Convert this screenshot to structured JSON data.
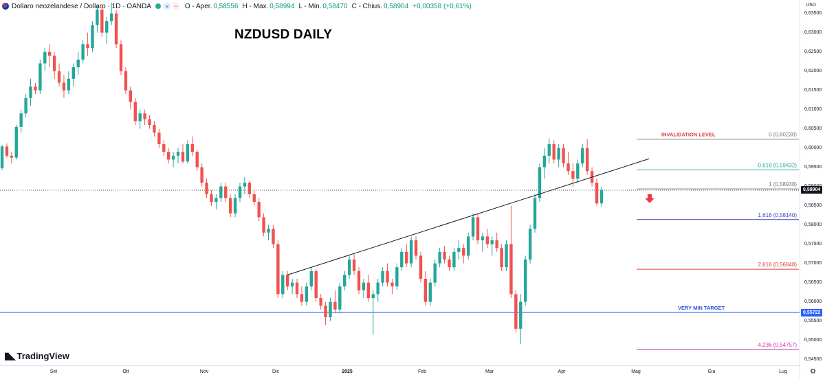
{
  "header": {
    "symbol": "Dollaro neozelandese / Dollaro · 1D · OANDA",
    "buy_icon": "sell-buy-icon",
    "o_label": "O - Aper.",
    "o_value": "0,58556",
    "h_label": "H - Max.",
    "h_value": "0,58994",
    "l_label": "L - Min.",
    "l_value": "0,58470",
    "c_label": "C - Chius.",
    "c_value": "0,58904",
    "change_value": "+0,00358 (+0,61%)"
  },
  "currency": "USD",
  "title": "NZDUSD DAILY",
  "branding": "TradingView",
  "colors": {
    "up": "#26a69a",
    "down": "#ef5350",
    "price_line": "#131722",
    "target_line": "#2962ff"
  },
  "chart_data": {
    "type": "candlestick",
    "y_axis_ticks": [
      "0,54500",
      "0,55000",
      "0,55500",
      "0,56000",
      "0,56500",
      "0,57000",
      "0,57500",
      "0,58000",
      "0,58500",
      "0,59000",
      "0,59500",
      "0,60000",
      "0,60500",
      "0,61000",
      "0,61500",
      "0,62000",
      "0,62500",
      "0,63000",
      "0,63500"
    ],
    "x_axis_ticks": [
      "Set",
      "Ott",
      "Nov",
      "Dic",
      "2025",
      "Feb",
      "Mar",
      "Apr",
      "Mag",
      "Giu",
      "Lug"
    ],
    "last_price": "0,58904",
    "candles": [
      [
        0.5948,
        0.6008,
        0.5942,
        0.6004
      ],
      [
        0.6004,
        0.6012,
        0.5975,
        0.598
      ],
      [
        0.598,
        0.599,
        0.596,
        0.5975
      ],
      [
        0.5975,
        0.606,
        0.597,
        0.6055
      ],
      [
        0.6055,
        0.61,
        0.604,
        0.609
      ],
      [
        0.609,
        0.614,
        0.608,
        0.613
      ],
      [
        0.613,
        0.618,
        0.611,
        0.616
      ],
      [
        0.616,
        0.617,
        0.614,
        0.615
      ],
      [
        0.615,
        0.623,
        0.614,
        0.622
      ],
      [
        0.622,
        0.626,
        0.62,
        0.625
      ],
      [
        0.625,
        0.627,
        0.621,
        0.624
      ],
      [
        0.624,
        0.625,
        0.618,
        0.62
      ],
      [
        0.62,
        0.622,
        0.616,
        0.617
      ],
      [
        0.617,
        0.619,
        0.613,
        0.615
      ],
      [
        0.615,
        0.62,
        0.614,
        0.618
      ],
      [
        0.618,
        0.622,
        0.616,
        0.621
      ],
      [
        0.621,
        0.625,
        0.619,
        0.623
      ],
      [
        0.623,
        0.628,
        0.622,
        0.627
      ],
      [
        0.627,
        0.63,
        0.624,
        0.626
      ],
      [
        0.626,
        0.633,
        0.625,
        0.632
      ],
      [
        0.632,
        0.637,
        0.63,
        0.636
      ],
      [
        0.636,
        0.637,
        0.629,
        0.63
      ],
      [
        0.63,
        0.634,
        0.627,
        0.633
      ],
      [
        0.633,
        0.6378,
        0.632,
        0.635
      ],
      [
        0.635,
        0.636,
        0.626,
        0.627
      ],
      [
        0.627,
        0.628,
        0.619,
        0.62
      ],
      [
        0.62,
        0.621,
        0.614,
        0.615
      ],
      [
        0.615,
        0.616,
        0.61,
        0.612
      ],
      [
        0.612,
        0.613,
        0.606,
        0.607
      ],
      [
        0.607,
        0.61,
        0.605,
        0.609
      ],
      [
        0.609,
        0.61,
        0.606,
        0.6075
      ],
      [
        0.6075,
        0.6085,
        0.605,
        0.606
      ],
      [
        0.606,
        0.607,
        0.603,
        0.604
      ],
      [
        0.604,
        0.605,
        0.6,
        0.601
      ],
      [
        0.601,
        0.602,
        0.598,
        0.599
      ],
      [
        0.599,
        0.6,
        0.596,
        0.597
      ],
      [
        0.597,
        0.599,
        0.595,
        0.598
      ],
      [
        0.598,
        0.6,
        0.596,
        0.599
      ],
      [
        0.599,
        0.601,
        0.596,
        0.5965
      ],
      [
        0.5965,
        0.602,
        0.596,
        0.601
      ],
      [
        0.601,
        0.603,
        0.598,
        0.599
      ],
      [
        0.599,
        0.5995,
        0.594,
        0.595
      ],
      [
        0.595,
        0.596,
        0.59,
        0.591
      ],
      [
        0.591,
        0.592,
        0.587,
        0.588
      ],
      [
        0.588,
        0.589,
        0.585,
        0.586
      ],
      [
        0.586,
        0.588,
        0.584,
        0.587
      ],
      [
        0.587,
        0.591,
        0.586,
        0.59
      ],
      [
        0.59,
        0.591,
        0.586,
        0.587
      ],
      [
        0.587,
        0.588,
        0.582,
        0.583
      ],
      [
        0.583,
        0.588,
        0.582,
        0.587
      ],
      [
        0.587,
        0.591,
        0.586,
        0.59
      ],
      [
        0.59,
        0.5925,
        0.588,
        0.591
      ],
      [
        0.591,
        0.5915,
        0.587,
        0.588
      ],
      [
        0.588,
        0.589,
        0.585,
        0.586
      ],
      [
        0.586,
        0.587,
        0.581,
        0.582
      ],
      [
        0.582,
        0.583,
        0.577,
        0.578
      ],
      [
        0.578,
        0.58,
        0.576,
        0.579
      ],
      [
        0.579,
        0.58,
        0.574,
        0.575
      ],
      [
        0.575,
        0.576,
        0.561,
        0.562
      ],
      [
        0.562,
        0.568,
        0.561,
        0.567
      ],
      [
        0.567,
        0.568,
        0.563,
        0.564
      ],
      [
        0.564,
        0.566,
        0.562,
        0.565
      ],
      [
        0.565,
        0.566,
        0.561,
        0.562
      ],
      [
        0.562,
        0.564,
        0.559,
        0.56
      ],
      [
        0.56,
        0.565,
        0.559,
        0.564
      ],
      [
        0.564,
        0.569,
        0.563,
        0.568
      ],
      [
        0.568,
        0.5685,
        0.56,
        0.561
      ],
      [
        0.561,
        0.562,
        0.558,
        0.559
      ],
      [
        0.559,
        0.56,
        0.554,
        0.556
      ],
      [
        0.556,
        0.561,
        0.555,
        0.56
      ],
      [
        0.56,
        0.563,
        0.557,
        0.558
      ],
      [
        0.558,
        0.565,
        0.557,
        0.564
      ],
      [
        0.564,
        0.568,
        0.563,
        0.567
      ],
      [
        0.567,
        0.572,
        0.566,
        0.571
      ],
      [
        0.571,
        0.5725,
        0.567,
        0.568
      ],
      [
        0.568,
        0.569,
        0.562,
        0.563
      ],
      [
        0.563,
        0.566,
        0.561,
        0.565
      ],
      [
        0.565,
        0.567,
        0.56,
        0.561
      ],
      [
        0.561,
        0.563,
        0.5515,
        0.562
      ],
      [
        0.562,
        0.566,
        0.56,
        0.565
      ],
      [
        0.565,
        0.569,
        0.564,
        0.568
      ],
      [
        0.568,
        0.57,
        0.564,
        0.565
      ],
      [
        0.565,
        0.566,
        0.562,
        0.564
      ],
      [
        0.564,
        0.57,
        0.563,
        0.569
      ],
      [
        0.569,
        0.574,
        0.568,
        0.573
      ],
      [
        0.573,
        0.575,
        0.569,
        0.57
      ],
      [
        0.57,
        0.577,
        0.569,
        0.576
      ],
      [
        0.576,
        0.577,
        0.571,
        0.572
      ],
      [
        0.572,
        0.573,
        0.565,
        0.566
      ],
      [
        0.566,
        0.568,
        0.559,
        0.56
      ],
      [
        0.56,
        0.566,
        0.559,
        0.565
      ],
      [
        0.565,
        0.571,
        0.564,
        0.57
      ],
      [
        0.57,
        0.574,
        0.569,
        0.573
      ],
      [
        0.573,
        0.5745,
        0.57,
        0.571
      ],
      [
        0.571,
        0.572,
        0.568,
        0.569
      ],
      [
        0.569,
        0.574,
        0.568,
        0.573
      ],
      [
        0.573,
        0.576,
        0.571,
        0.574
      ],
      [
        0.574,
        0.575,
        0.57,
        0.572
      ],
      [
        0.572,
        0.578,
        0.571,
        0.577
      ],
      [
        0.577,
        0.583,
        0.576,
        0.582
      ],
      [
        0.582,
        0.583,
        0.575,
        0.576
      ],
      [
        0.576,
        0.578,
        0.573,
        0.577
      ],
      [
        0.577,
        0.579,
        0.574,
        0.575
      ],
      [
        0.575,
        0.577,
        0.572,
        0.576
      ],
      [
        0.576,
        0.578,
        0.573,
        0.574
      ],
      [
        0.574,
        0.575,
        0.568,
        0.569
      ],
      [
        0.569,
        0.576,
        0.568,
        0.575
      ],
      [
        0.575,
        0.585,
        0.561,
        0.562
      ],
      [
        0.562,
        0.563,
        0.552,
        0.553
      ],
      [
        0.553,
        0.562,
        0.549,
        0.56
      ],
      [
        0.56,
        0.572,
        0.559,
        0.571
      ],
      [
        0.571,
        0.58,
        0.57,
        0.579
      ],
      [
        0.579,
        0.588,
        0.578,
        0.587
      ],
      [
        0.587,
        0.596,
        0.586,
        0.595
      ],
      [
        0.595,
        0.6,
        0.592,
        0.598
      ],
      [
        0.598,
        0.6025,
        0.596,
        0.601
      ],
      [
        0.601,
        0.602,
        0.596,
        0.597
      ],
      [
        0.597,
        0.601,
        0.595,
        0.6
      ],
      [
        0.6,
        0.601,
        0.595,
        0.596
      ],
      [
        0.596,
        0.599,
        0.593,
        0.594
      ],
      [
        0.594,
        0.596,
        0.59,
        0.592
      ],
      [
        0.592,
        0.597,
        0.591,
        0.596
      ],
      [
        0.596,
        0.601,
        0.595,
        0.6
      ],
      [
        0.6,
        0.6023,
        0.593,
        0.594
      ],
      [
        0.594,
        0.595,
        0.59,
        0.591
      ],
      [
        0.591,
        0.592,
        0.585,
        0.5856
      ],
      [
        0.5856,
        0.5899,
        0.5847,
        0.589
      ]
    ],
    "trendline": {
      "from": [
        60,
        0.567
      ],
      "to": [
        136,
        0.5972
      ]
    },
    "fibonacci": [
      {
        "label": "0 (0,60230)",
        "price": 0.6023,
        "color": "#787b86"
      },
      {
        "label": "0,618 (0,59432)",
        "price": 0.59432,
        "color": "#26a69a"
      },
      {
        "label": "1 (0,58938)",
        "price": 0.58938,
        "color": "#787b86"
      },
      {
        "label": "1,618 (0,58140)",
        "price": 0.5814,
        "color": "#3f3fbf"
      },
      {
        "label": "2,618 (0,56848)",
        "price": 0.56848,
        "color": "#e03b3b"
      },
      {
        "label": "4,236 (0,54757)",
        "price": 0.54757,
        "color": "#cc33aa"
      }
    ],
    "annotations": [
      {
        "text": "INVALIDATION LEVEL",
        "color": "#e03b3b"
      },
      {
        "text": "VERY MIN TARGET",
        "color": "#2b52d4"
      }
    ],
    "horizontal_levels": [
      {
        "price": 0.55722,
        "label": "0,55722",
        "color": "#2962ff"
      }
    ],
    "ylim": [
      0.5435,
      0.6385
    ]
  }
}
